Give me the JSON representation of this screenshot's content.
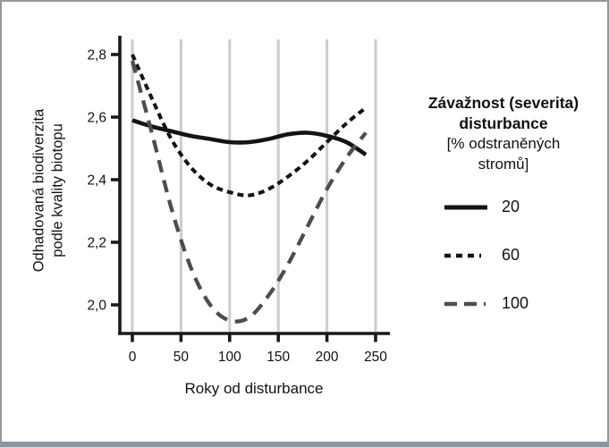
{
  "figure": {
    "background": "#ffffff",
    "border_color": "#979797",
    "bottom_bar_color": "#8e969d"
  },
  "chart_data": {
    "type": "line",
    "title": "",
    "xlabel": "Roky od disturbance",
    "ylabel": "Odhadovaná biodiverzita podle kvality biotopu",
    "ylabel_line1": "Odhadovaná biodiverzita",
    "ylabel_line2": "podle kvality biotopu",
    "xlim": [
      -12,
      262
    ],
    "ylim": [
      1.9,
      2.86
    ],
    "grid": "vertical-only",
    "legend_position": "right",
    "x": [
      0,
      20,
      40,
      60,
      80,
      100,
      120,
      140,
      160,
      180,
      200,
      220,
      240
    ],
    "series": [
      {
        "name": "20",
        "color": "#141414",
        "dash": "",
        "width": 4.6,
        "swatch_dash": "",
        "values": [
          2.59,
          2.57,
          2.555,
          2.54,
          2.53,
          2.52,
          2.52,
          2.53,
          2.545,
          2.55,
          2.54,
          2.52,
          2.48
        ]
      },
      {
        "name": "60",
        "color": "#141414",
        "dash": "7 5",
        "width": 4.1,
        "swatch_dash": "7 6 7 6 7 6 2",
        "values": [
          2.8,
          2.66,
          2.53,
          2.44,
          2.385,
          2.36,
          2.35,
          2.37,
          2.41,
          2.46,
          2.52,
          2.58,
          2.63
        ]
      },
      {
        "name": "100",
        "color": "#4d4d4d",
        "dash": "14 9",
        "width": 4.3,
        "swatch_dash": "14 8 14 8 2",
        "values": [
          2.78,
          2.55,
          2.31,
          2.12,
          2.0,
          1.95,
          1.96,
          2.03,
          2.13,
          2.25,
          2.37,
          2.47,
          2.55
        ]
      }
    ],
    "xticks": [
      {
        "v": 0,
        "label": "0"
      },
      {
        "v": 50,
        "label": "50"
      },
      {
        "v": 100,
        "label": "100"
      },
      {
        "v": 150,
        "label": "150"
      },
      {
        "v": 200,
        "label": "200"
      },
      {
        "v": 250,
        "label": "250"
      }
    ],
    "yticks": [
      {
        "v": 2.0,
        "label": "2,0"
      },
      {
        "v": 2.2,
        "label": "2,2"
      },
      {
        "v": 2.4,
        "label": "2,4"
      },
      {
        "v": 2.6,
        "label": "2,6"
      },
      {
        "v": 2.8,
        "label": "2,8"
      }
    ],
    "colors": {
      "grid": "#cccccc",
      "axis": "#1a1a1a",
      "text": "#111111"
    }
  },
  "legend": {
    "title_line1": "Závažnost (severita)",
    "title_line2": "disturbance",
    "subtitle_line1": "[% odstraněných",
    "subtitle_line2": "stromů]"
  }
}
